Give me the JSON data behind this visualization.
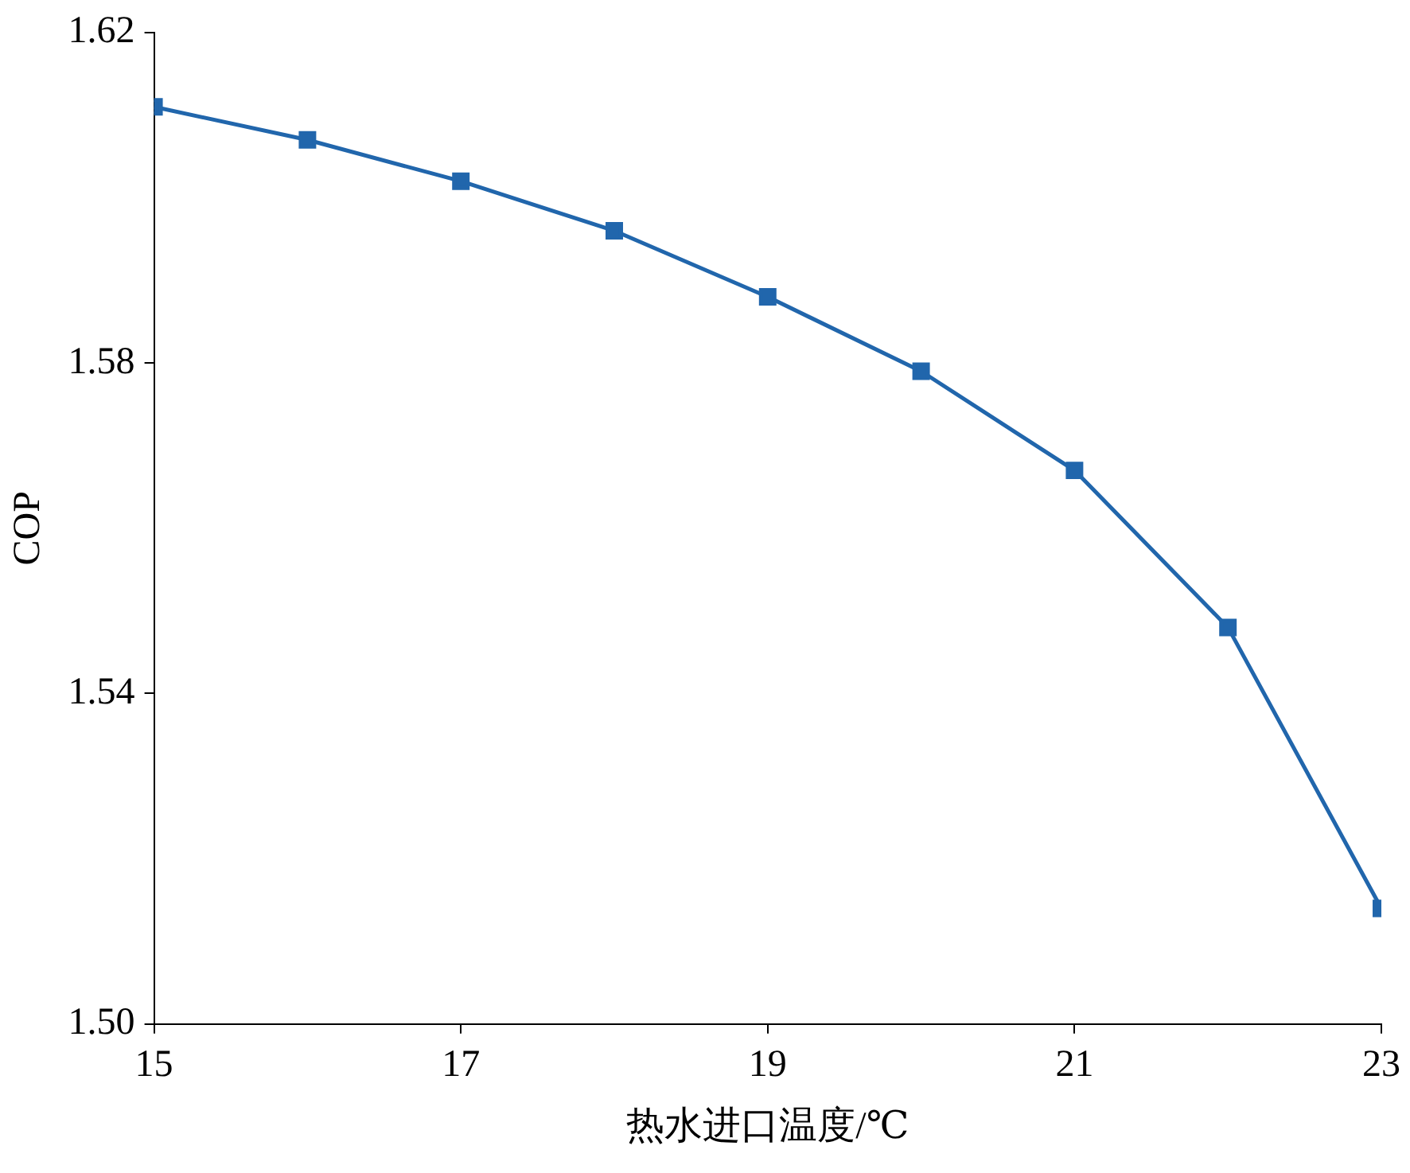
{
  "chart_data": {
    "type": "line",
    "xlabel": "热水进口温度/℃",
    "ylabel": "COP",
    "x": [
      15,
      16,
      17,
      18,
      19,
      20,
      21,
      22,
      23
    ],
    "series": [
      {
        "color": "#2166ac",
        "values": [
          1.611,
          1.607,
          1.602,
          1.596,
          1.588,
          1.579,
          1.567,
          1.548,
          1.514
        ]
      }
    ],
    "xlim": [
      15,
      23
    ],
    "xticks": [
      15,
      17,
      19,
      21,
      23
    ],
    "ylim": [
      1.5,
      1.62
    ],
    "yticks": [
      {
        "value": 1.5,
        "label": "1.50"
      },
      1.54,
      1.58,
      1.62
    ],
    "grid": false,
    "legend": false,
    "marker": "square",
    "line_style": "solid"
  }
}
